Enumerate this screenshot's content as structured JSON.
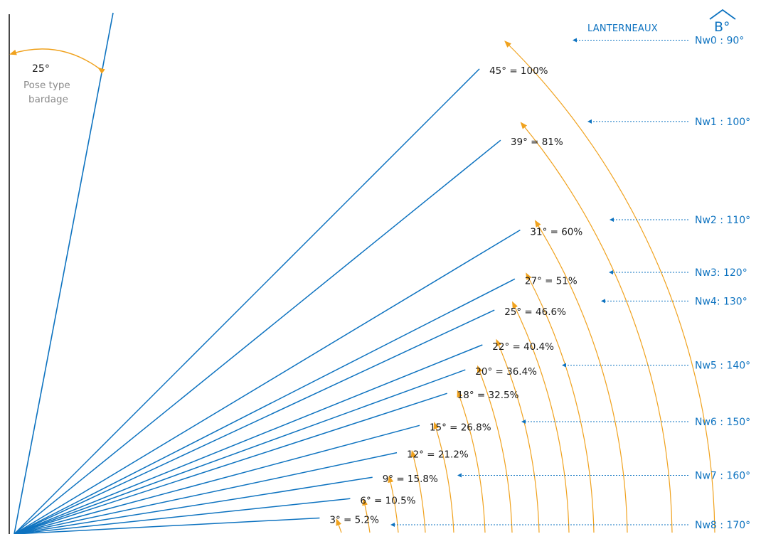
{
  "brand": {
    "title": "LANTERNEAUX",
    "logo_text": "B°"
  },
  "colors": {
    "line": "#0e73c0",
    "arc": "#f0a21e",
    "text": "#1a1a1a",
    "label": "#0e73c0",
    "muted": "#8a8a8a"
  },
  "bardage": {
    "angle": "25°",
    "line1": "Pose type",
    "line2": "bardage"
  },
  "slopes": [
    {
      "deg": 45,
      "label": "45° = 100%"
    },
    {
      "deg": 39,
      "label": "39° = 81%"
    },
    {
      "deg": 31,
      "label": "31° = 60%"
    },
    {
      "deg": 27,
      "label": "27° = 51%"
    },
    {
      "deg": 25,
      "label": "25° = 46.6%"
    },
    {
      "deg": 22,
      "label": "22° = 40.4%"
    },
    {
      "deg": 20,
      "label": "20° = 36.4%"
    },
    {
      "deg": 18,
      "label": "18° = 32.5%"
    },
    {
      "deg": 15,
      "label": "15° = 26.8%"
    },
    {
      "deg": 12,
      "label": "12° = 21.2%"
    },
    {
      "deg": 9,
      "label": "9° = 15.8%"
    },
    {
      "deg": 6,
      "label": "6° = 10.5%"
    },
    {
      "deg": 3,
      "label": "3° = 5.2%"
    }
  ],
  "nw": [
    {
      "label": "Nw0 : 90°",
      "slope": 45
    },
    {
      "label": "Nw1 : 100°",
      "slope": 39
    },
    {
      "label": "Nw2 : 110°",
      "slope": 31
    },
    {
      "label": "Nw3: 120°",
      "slope": 27
    },
    {
      "label": "Nw4: 130°",
      "slope": 25
    },
    {
      "label": "Nw5 : 140°",
      "slope": 20
    },
    {
      "label": "Nw6 : 150°",
      "slope": 15
    },
    {
      "label": "Nw7 : 160°",
      "slope": 9
    },
    {
      "label": "Nw8 : 170°",
      "slope": 3
    }
  ]
}
